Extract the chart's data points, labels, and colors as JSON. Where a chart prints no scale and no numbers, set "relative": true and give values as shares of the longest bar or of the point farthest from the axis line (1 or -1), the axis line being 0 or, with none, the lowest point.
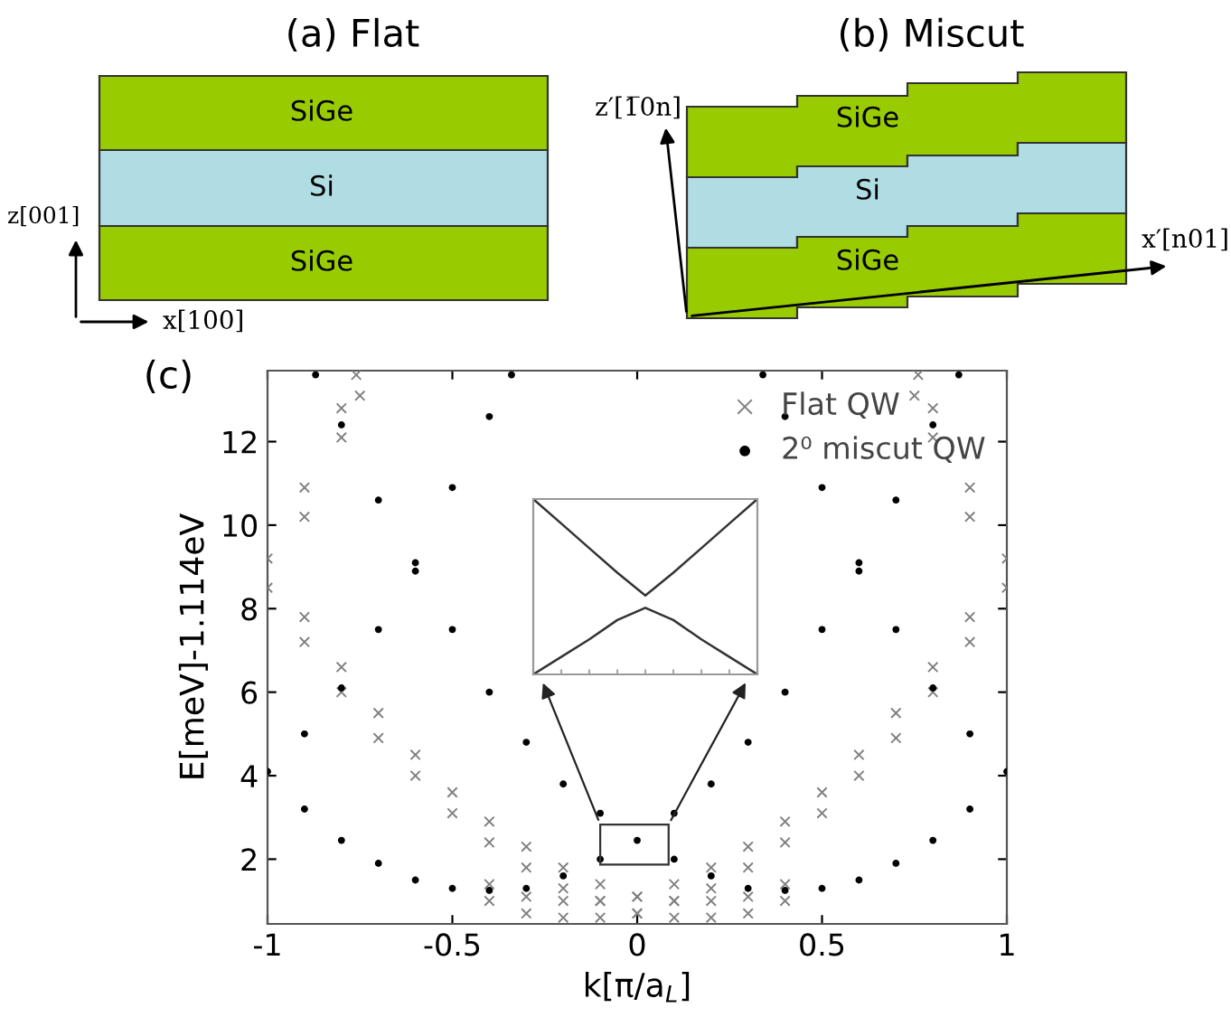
{
  "chart_data": [
    {
      "type": "other",
      "title": "(a) Flat",
      "annotations": [
        "SiGe",
        "Si",
        "SiGe",
        "z[001]",
        "x[100]"
      ]
    },
    {
      "type": "other",
      "title": "(b) Miscut",
      "annotations": [
        "SiGe",
        "Si",
        "SiGe",
        "z′[1̅0n]",
        "x′[n01]"
      ]
    },
    {
      "type": "scatter",
      "title": "(c)",
      "xlabel": "k[π/a$_{L}$]",
      "ylabel": "E[meV]-1.114eV",
      "xlim": [
        -1,
        1
      ],
      "ylim": [
        0.45,
        13.7
      ],
      "xticks": [
        -1,
        -0.5,
        0,
        0.5,
        1
      ],
      "yticks": [
        2,
        4,
        6,
        8,
        10,
        12
      ],
      "grid": false,
      "legend": "top right",
      "series": [
        {
          "name": "Flat QW",
          "color": "#808080",
          "marker": "cross",
          "x": [
            -1,
            -0.9,
            -0.8,
            -0.7,
            -0.6,
            -0.5,
            -0.4,
            -0.3,
            -0.2,
            -0.1,
            0,
            0.1,
            0.2,
            0.3,
            0.4,
            1,
            0.9,
            0.8,
            0.7,
            0.6,
            0.5,
            0.4,
            0.3,
            0.2,
            0.1,
            0,
            -0.1,
            -0.2,
            -0.3,
            -0.4,
            -1,
            -0.9,
            -0.8,
            -0.7,
            -0.6,
            -0.5,
            -0.4,
            -0.3,
            -0.2,
            -0.1,
            0,
            0.1,
            0.2,
            0.3,
            0.4,
            1,
            0.9,
            0.8,
            0.7,
            0.6,
            0.5,
            0.4,
            0.3,
            0.2,
            0.1,
            0,
            -0.1,
            -0.2,
            -0.3,
            -0.4,
            -0.9,
            -0.8,
            -0.75,
            -0.9,
            -0.8,
            -0.76,
            0.9,
            0.8,
            0.75,
            0.9,
            0.8,
            0.76
          ],
          "values": [
            8.5,
            7.2,
            6.0,
            4.9,
            4.0,
            3.1,
            2.4,
            1.8,
            1.3,
            1.0,
            0.7,
            0.6,
            0.6,
            0.7,
            1.0,
            8.5,
            7.2,
            6.0,
            4.9,
            4.0,
            3.1,
            2.4,
            1.8,
            1.3,
            1.0,
            0.7,
            0.6,
            0.6,
            0.7,
            1.0,
            9.2,
            7.8,
            6.6,
            5.5,
            4.5,
            3.6,
            2.9,
            2.3,
            1.8,
            1.4,
            1.1,
            1.0,
            1.0,
            1.1,
            1.4,
            9.2,
            7.8,
            6.6,
            5.5,
            4.5,
            3.6,
            2.9,
            2.3,
            1.8,
            1.4,
            1.1,
            1.0,
            1.0,
            1.1,
            1.4,
            10.2,
            12.1,
            13.1,
            10.9,
            12.8,
            13.6,
            10.2,
            12.1,
            13.1,
            10.9,
            12.8,
            13.6
          ]
        },
        {
          "name": "2⁰ miscut QW",
          "color": "#000000",
          "marker": "circle",
          "x": [
            -1,
            -0.9,
            -0.8,
            -0.7,
            -0.6,
            -0.5,
            -0.4,
            -0.3,
            -0.2,
            -0.1,
            0,
            0.1,
            0.2,
            0.3,
            0.4,
            0.5,
            0.6,
            0.7,
            0.8,
            0.87,
            1,
            0.9,
            0.8,
            0.7,
            0.6,
            0.5,
            0.4,
            0.3,
            0.2,
            0.1,
            -0.1,
            -0.2,
            -0.3,
            -0.4,
            -0.5,
            -0.6,
            -0.7,
            -0.8,
            -0.87,
            -0.9,
            -0.8,
            -0.7,
            -0.6,
            -0.5,
            -0.4,
            -0.34,
            0.9,
            0.8,
            0.7,
            0.6,
            0.5,
            0.4,
            0.34
          ],
          "values": [
            4.1,
            3.2,
            2.45,
            1.9,
            1.5,
            1.3,
            1.25,
            1.3,
            1.6,
            2.0,
            2.45,
            3.1,
            3.8,
            4.8,
            6.0,
            7.5,
            8.9,
            10.6,
            12.4,
            13.6,
            4.1,
            3.2,
            2.45,
            1.9,
            1.5,
            1.3,
            1.25,
            1.3,
            1.6,
            2.0,
            3.1,
            3.8,
            4.8,
            6.0,
            7.5,
            8.9,
            10.6,
            12.4,
            13.6,
            5.0,
            6.1,
            7.5,
            9.1,
            10.9,
            12.6,
            13.6,
            5.0,
            6.1,
            7.5,
            9.1,
            10.9,
            12.6,
            13.6
          ]
        }
      ]
    },
    {
      "type": "line",
      "relative": true,
      "categories": [
        null,
        null,
        null,
        null,
        null,
        null,
        null,
        null,
        null
      ],
      "series": [
        {
          "color": "#333333",
          "values": [
            1,
            0.86,
            0.72,
            0.58,
            0.45,
            0.58,
            0.72,
            0.86,
            1
          ]
        },
        {
          "color": "#333333",
          "values": [
            0,
            0.1,
            0.2,
            0.31,
            0.38,
            0.31,
            0.2,
            0.1,
            0
          ]
        }
      ]
    }
  ]
}
